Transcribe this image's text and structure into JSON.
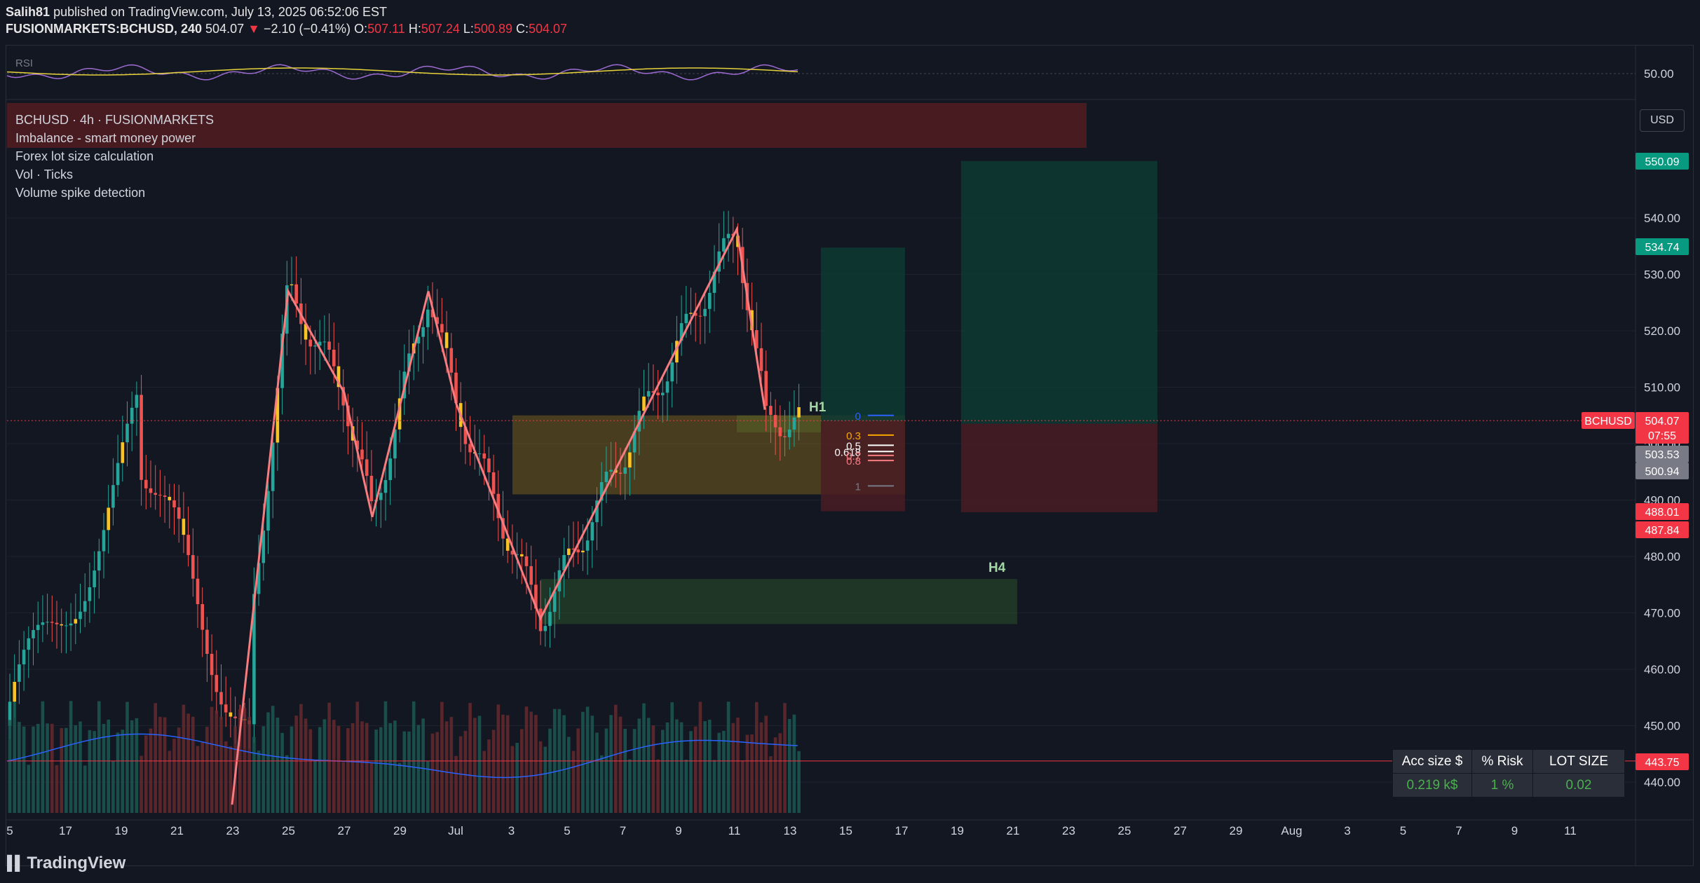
{
  "header": {
    "author": "Salih81",
    "published_text": "published on TradingView.com, July 13, 2025 06:52:06 EST",
    "symbol_line": "FUSIONMARKETS:BCHUSD, 240",
    "last": "504.07",
    "change_arrow": "▼",
    "change": "−2.10 (−0.41%)",
    "o_label": "O:",
    "o": "507.11",
    "h_label": "H:",
    "h": "507.24",
    "l_label": "L:",
    "l": "500.89",
    "c_label": "C:",
    "c": "504.07"
  },
  "legend": {
    "title": "BCHUSD · 4h · FUSIONMARKETS",
    "indicators": [
      "Imbalance - smart money power",
      "Forex lot size calculation",
      "Vol · Ticks",
      "Volume spike detection"
    ]
  },
  "rsi": {
    "label": "RSI",
    "level": "50.00"
  },
  "currency_button": "USD",
  "annotations": {
    "h1": "H1",
    "h4": "H4"
  },
  "fib_labels": [
    "0",
    "0.3",
    "0.5",
    "0.618",
    "0.7",
    "0.8",
    "1"
  ],
  "price_tags": [
    {
      "text": "550.09",
      "color": "#089981"
    },
    {
      "text": "534.74",
      "color": "#089981"
    },
    {
      "text": "BCHUSD",
      "color": "#f23645"
    },
    {
      "text": "504.07",
      "color": "#f23645"
    },
    {
      "text": "07:55",
      "color": "#f23645"
    },
    {
      "text": "503.53",
      "color": "#787b86"
    },
    {
      "text": "500.94",
      "color": "#787b86"
    },
    {
      "text": "488.01",
      "color": "#f23645"
    },
    {
      "text": "487.84",
      "color": "#f23645"
    },
    {
      "text": "443.75",
      "color": "#f23645"
    }
  ],
  "lot_table": {
    "headers": [
      "Acc size $",
      "% Risk",
      "LOT SIZE"
    ],
    "values": [
      "0.219 k$",
      "1 %",
      "0.02"
    ]
  },
  "footer_brand": "TradingView",
  "chart_data": {
    "type": "candlestick",
    "symbol": "BCHUSD",
    "timeframe": "4h",
    "y_axis_ticks": [
      440,
      450,
      460,
      470,
      480,
      490,
      500,
      510,
      520,
      530,
      540
    ],
    "ylim": [
      435,
      552
    ],
    "x_axis_ticks": [
      "5",
      "17",
      "19",
      "21",
      "23",
      "25",
      "27",
      "29",
      "Jul",
      "3",
      "5",
      "7",
      "9",
      "11",
      "13",
      "15",
      "17",
      "19",
      "21",
      "23",
      "25",
      "27",
      "29",
      "Aug",
      "3",
      "5",
      "7",
      "9",
      "11"
    ],
    "swing_path": [
      {
        "date": "Jun 23",
        "price": 436
      },
      {
        "date": "Jun 25",
        "price": 527
      },
      {
        "date": "Jun 27",
        "price": 509
      },
      {
        "date": "Jun 28",
        "price": 487
      },
      {
        "date": "Jun 30",
        "price": 527
      },
      {
        "date": "Jul 1",
        "price": 507
      },
      {
        "date": "Jul 4",
        "price": 469
      },
      {
        "date": "Jul 11",
        "price": 538
      },
      {
        "date": "Jul 12",
        "price": 506
      }
    ],
    "zones": [
      {
        "name": "imbalance",
        "from": "Jul 3",
        "to": "Jul 17",
        "top": 505,
        "bottom": 491
      },
      {
        "name": "H4",
        "from": "Jul 4",
        "to": "Jul 21",
        "top": 476,
        "bottom": 468
      },
      {
        "name": "H1",
        "from": "Jul 11",
        "to": "Jul 14",
        "top": 505,
        "bottom": 502
      }
    ],
    "long_positions": [
      {
        "entry": 504,
        "target": 534.74,
        "stop": 488.01,
        "from": "Jul 14",
        "to": "Jul 17"
      },
      {
        "entry": 503.53,
        "target": 550.09,
        "stop": 487.84,
        "from": "Jul 19",
        "to": "Jul 26"
      }
    ],
    "last_price": 504.07,
    "horizontal_line": 443.75
  }
}
